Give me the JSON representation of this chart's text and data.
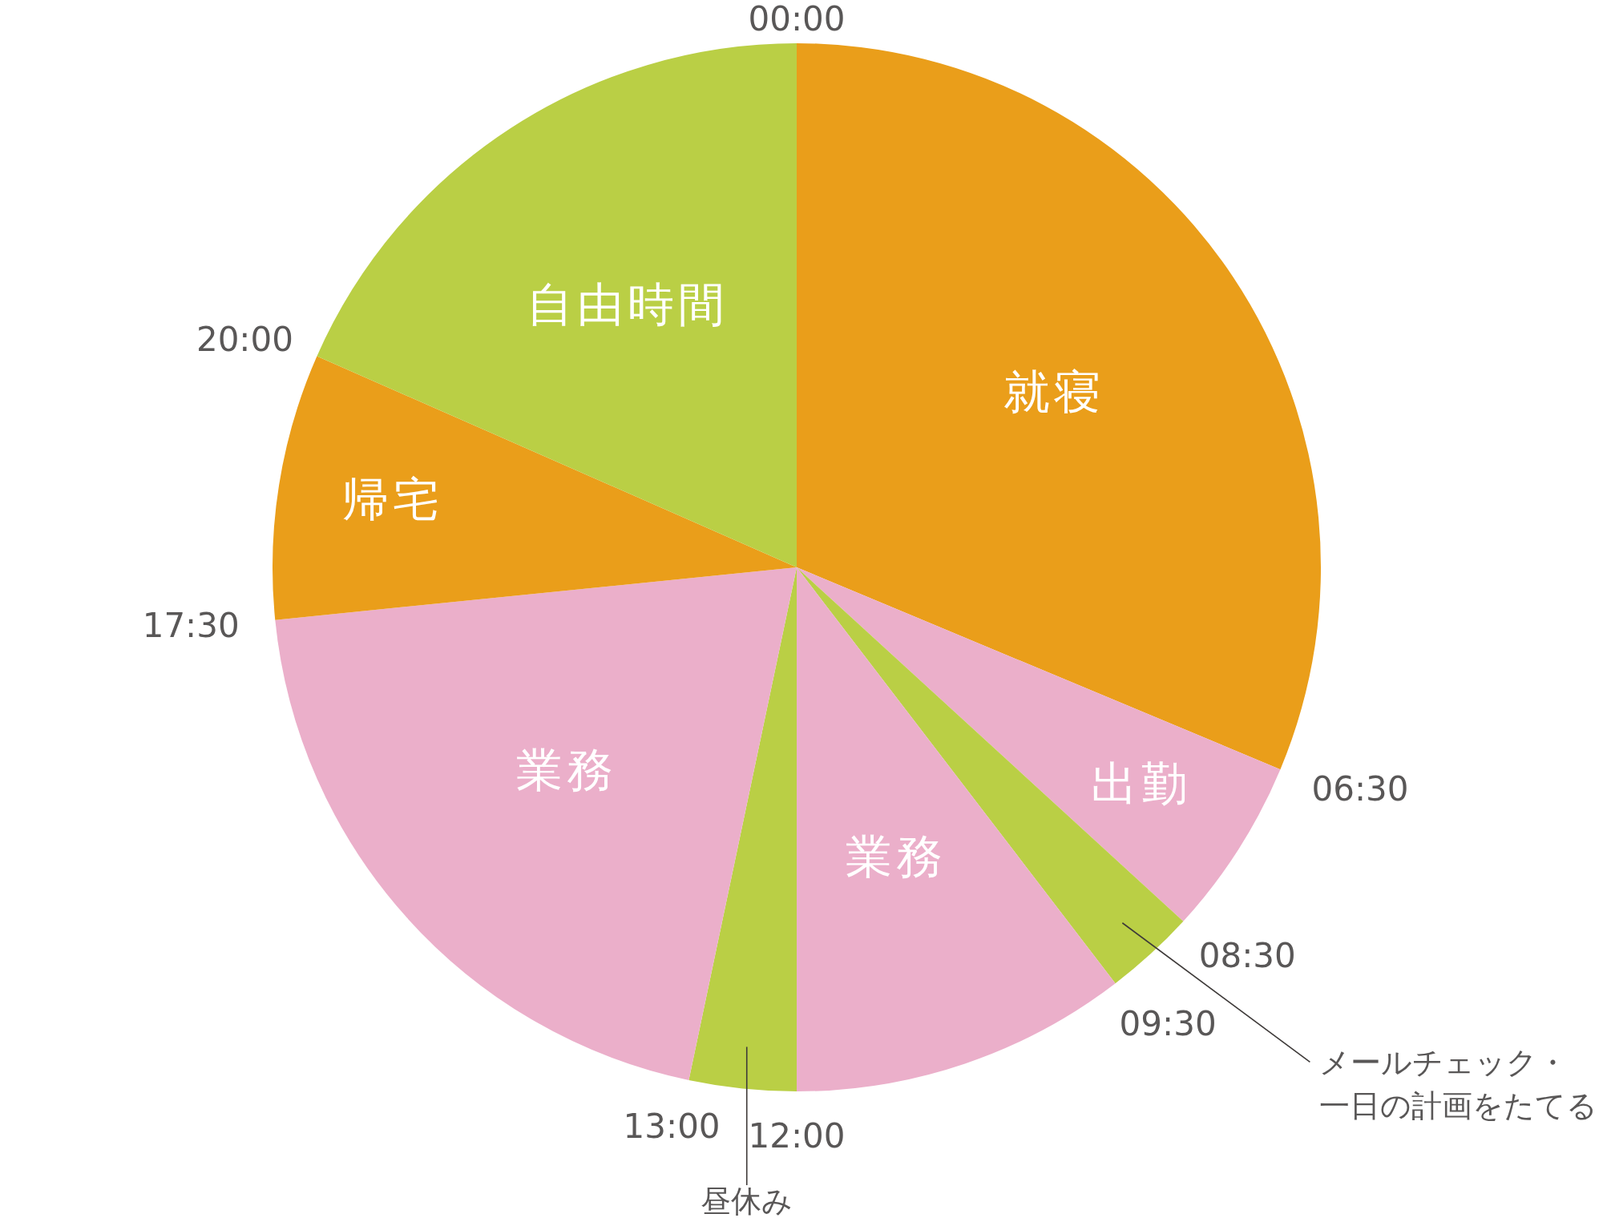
{
  "chart_data": {
    "type": "pie",
    "categories": [
      "就寝",
      "出勤",
      "メールチェック・一日の計画をたてる",
      "業務",
      "昼休み",
      "業務",
      "帰宅",
      "自由時間"
    ],
    "values": [
      31.3,
      5.5,
      2.8,
      10.4,
      3.3,
      20.1,
      8.2,
      18.4
    ],
    "colors": [
      "#ea9e1a",
      "#ebafca",
      "#bacf45",
      "#ebafca",
      "#bacf45",
      "#ebafca",
      "#ea9e1a",
      "#bacf45"
    ],
    "annotations": [
      "00:00",
      "06:30",
      "08:30",
      "09:30",
      "12:00",
      "13:00",
      "17:30",
      "20:00"
    ]
  }
}
